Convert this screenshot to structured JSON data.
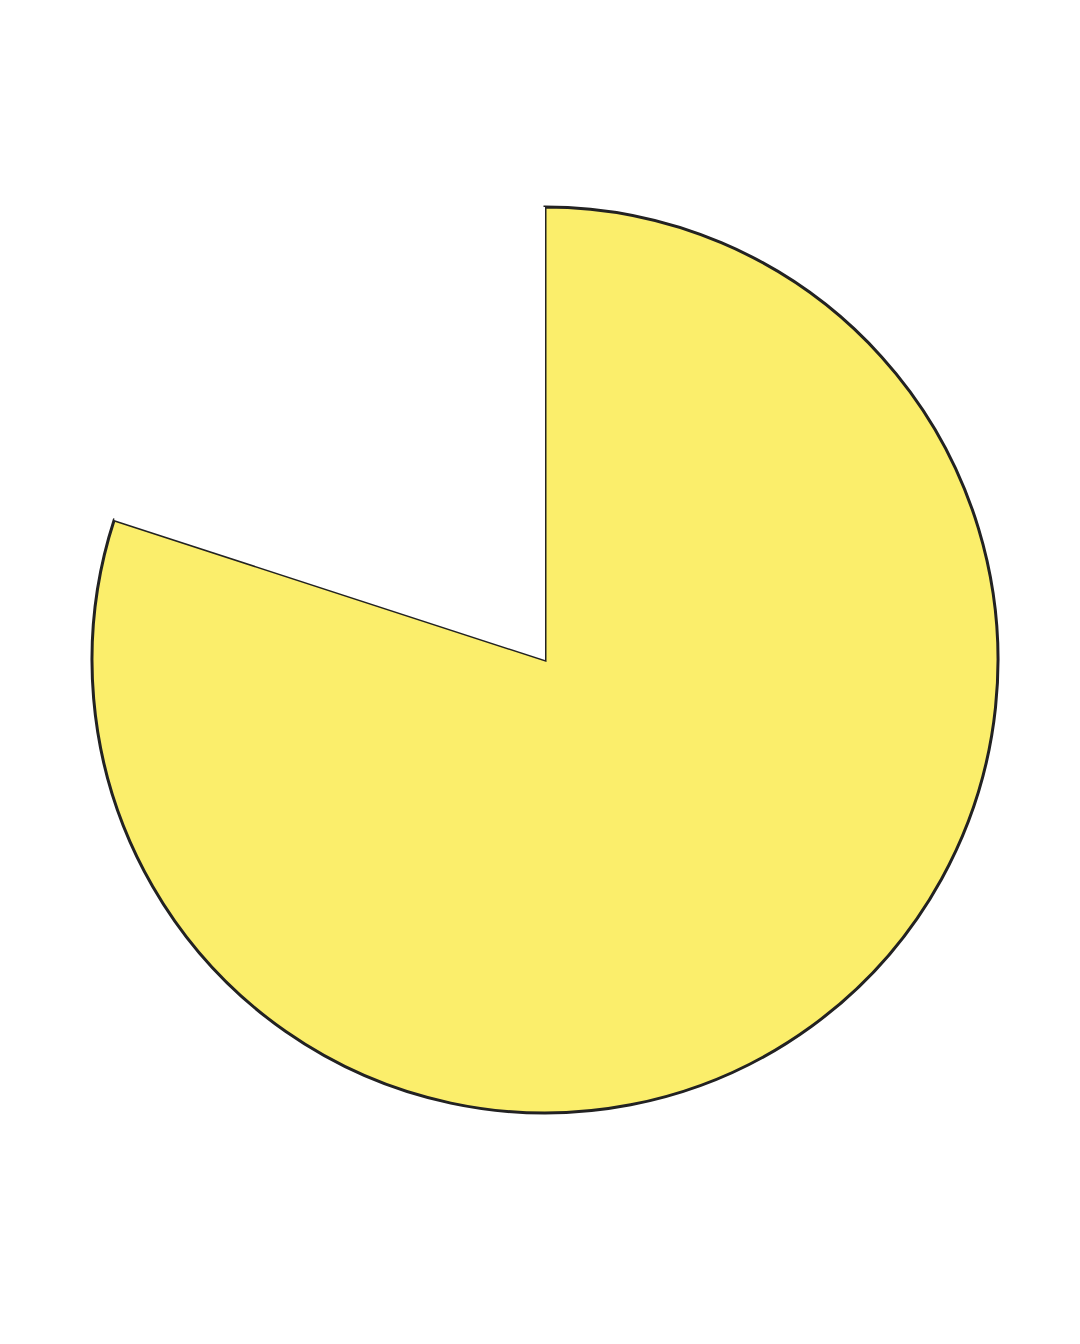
{
  "chart_data": {
    "type": "pie",
    "values": [
      80,
      20
    ],
    "colors": [
      "#fbee6b",
      "#ffffff"
    ]
  }
}
